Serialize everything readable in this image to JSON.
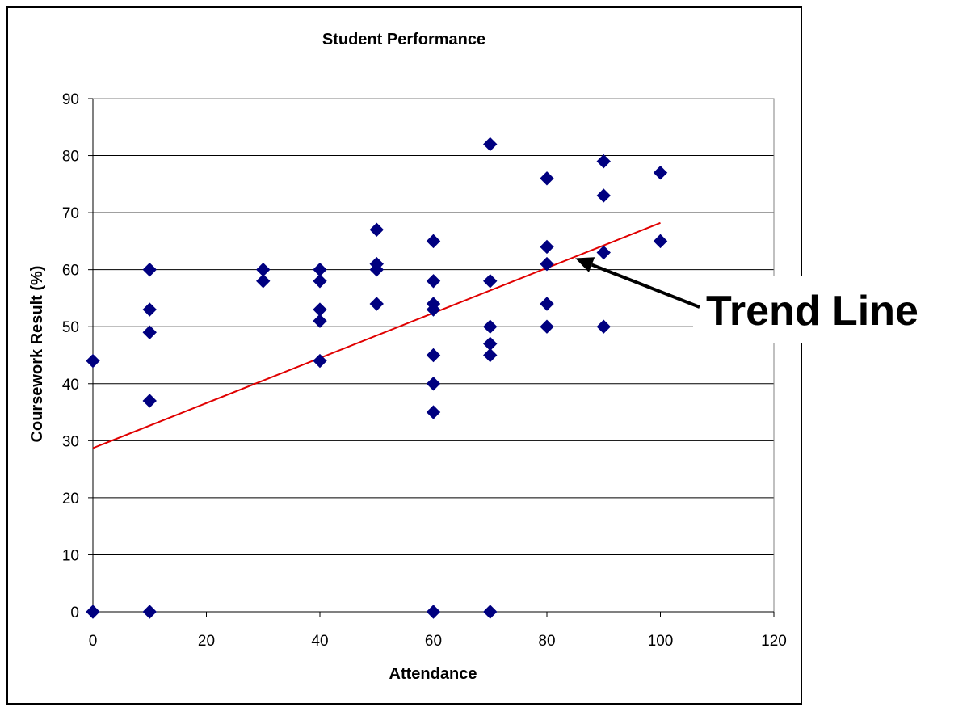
{
  "chart_data": {
    "type": "scatter",
    "title": "Student Performance",
    "xlabel": "Attendance",
    "ylabel": "Coursework Result (%)",
    "xlim": [
      0,
      120
    ],
    "ylim": [
      0,
      90
    ],
    "x_ticks": [
      0,
      20,
      40,
      60,
      80,
      100,
      120
    ],
    "y_ticks": [
      0,
      10,
      20,
      30,
      40,
      50,
      60,
      70,
      80,
      90
    ],
    "grid": "horizontal",
    "legend": "none",
    "marker": "diamond",
    "colors": {
      "marker": "#000080",
      "trend_line": "#e00000",
      "grid": "#000000",
      "annotation_arrow": "#000000"
    },
    "series": [
      {
        "points": [
          [
            0,
            44
          ],
          [
            0,
            0
          ],
          [
            10,
            60
          ],
          [
            10,
            53
          ],
          [
            10,
            49
          ],
          [
            10,
            37
          ],
          [
            10,
            0
          ],
          [
            30,
            60
          ],
          [
            30,
            58
          ],
          [
            40,
            60
          ],
          [
            40,
            58
          ],
          [
            40,
            53
          ],
          [
            40,
            51
          ],
          [
            40,
            44
          ],
          [
            50,
            67
          ],
          [
            50,
            61
          ],
          [
            50,
            60
          ],
          [
            50,
            54
          ],
          [
            60,
            65
          ],
          [
            60,
            58
          ],
          [
            60,
            54
          ],
          [
            60,
            53
          ],
          [
            60,
            45
          ],
          [
            60,
            40
          ],
          [
            60,
            35
          ],
          [
            60,
            0
          ],
          [
            70,
            82
          ],
          [
            70,
            58
          ],
          [
            70,
            50
          ],
          [
            70,
            47
          ],
          [
            70,
            45
          ],
          [
            70,
            0
          ],
          [
            80,
            76
          ],
          [
            80,
            64
          ],
          [
            80,
            61
          ],
          [
            80,
            54
          ],
          [
            80,
            50
          ],
          [
            90,
            79
          ],
          [
            90,
            73
          ],
          [
            90,
            63
          ],
          [
            90,
            50
          ],
          [
            100,
            77
          ],
          [
            100,
            65
          ]
        ]
      }
    ],
    "trend_line": {
      "x": [
        0,
        100
      ],
      "y": [
        28.7,
        68.2
      ]
    },
    "annotation": {
      "text": "Trend Line",
      "points_to": [
        85,
        62
      ]
    }
  }
}
